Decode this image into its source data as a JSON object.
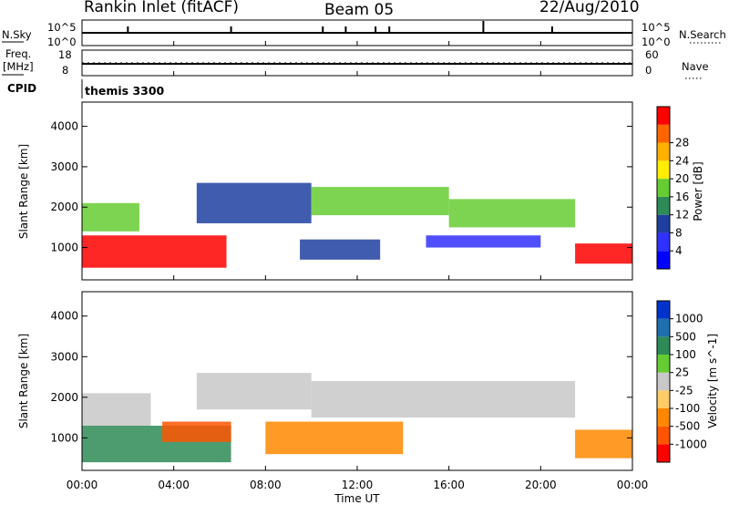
{
  "header": {
    "site": "Rankin Inlet (fitACF)",
    "beam": "Beam 05",
    "date": "22/Aug/2010"
  },
  "sky_panel": {
    "left_label": "N.Sky",
    "right_label": "N.Search",
    "left_ticks": [
      "10^5",
      "10^0"
    ],
    "right_ticks": [
      "10^5",
      "10^0"
    ]
  },
  "freq_panel": {
    "left_label_1": "Freq.",
    "left_label_2": "[MHz]",
    "right_label": "Nave",
    "left_ticks": [
      "18",
      "8"
    ],
    "right_ticks": [
      "60",
      "0"
    ]
  },
  "cpid": {
    "label": "CPID",
    "value": "themis 3300"
  },
  "chart_data": [
    {
      "type": "heatmap",
      "title": "",
      "ylabel": "Slant Range [km]",
      "y_ticks": [
        "1000",
        "2000",
        "3000",
        "4000"
      ],
      "ylim": [
        200,
        4600
      ],
      "colorbar_label": "Power [dB]",
      "colorbar_ticks": [
        "4",
        "8",
        "12",
        "16",
        "20",
        "24",
        "28"
      ],
      "colors": [
        "#0000ff",
        "#3030ff",
        "#1f3fa0",
        "#2e8b57",
        "#66cc33",
        "#ffee00",
        "#ffb000",
        "#ff6600",
        "#ff0000"
      ],
      "bands": [
        {
          "start": 0,
          "end": 6.3,
          "low": 500,
          "high": 1300,
          "level": 8
        },
        {
          "start": 0,
          "end": 2.5,
          "low": 1400,
          "high": 2100,
          "level": 4
        },
        {
          "start": 5,
          "end": 10,
          "low": 1600,
          "high": 2600,
          "level": 2
        },
        {
          "start": 10,
          "end": 16,
          "low": 1800,
          "high": 2500,
          "level": 4
        },
        {
          "start": 16,
          "end": 21.5,
          "low": 1500,
          "high": 2200,
          "level": 4
        },
        {
          "start": 21.5,
          "end": 24,
          "low": 600,
          "high": 1100,
          "level": 8
        },
        {
          "start": 9.5,
          "end": 13,
          "low": 700,
          "high": 1200,
          "level": 2
        },
        {
          "start": 15,
          "end": 20,
          "low": 1000,
          "high": 1300,
          "level": 1
        }
      ]
    },
    {
      "type": "heatmap",
      "title": "",
      "ylabel": "Slant Range [km]",
      "y_ticks": [
        "1000",
        "2000",
        "3000",
        "4000"
      ],
      "ylim": [
        200,
        4600
      ],
      "colorbar_label": "Velocity [m s^-1]",
      "colorbar_ticks": [
        "1000",
        "500",
        "100",
        "25",
        "-25",
        "-100",
        "-500",
        "-1000"
      ],
      "colors": [
        "#0033cc",
        "#1f6fb0",
        "#2e8b57",
        "#66cc33",
        "#c8c8c8",
        "#ffcc66",
        "#ff8800",
        "#ff5500",
        "#ff0000"
      ],
      "bands": [
        {
          "start": 0,
          "end": 6.5,
          "low": 400,
          "high": 1300,
          "level": 2
        },
        {
          "start": 0,
          "end": 3,
          "low": 1300,
          "high": 2100,
          "level": 4
        },
        {
          "start": 5,
          "end": 10,
          "low": 1700,
          "high": 2600,
          "level": 4
        },
        {
          "start": 10,
          "end": 21.5,
          "low": 1500,
          "high": 2400,
          "level": 4
        },
        {
          "start": 8,
          "end": 14,
          "low": 600,
          "high": 1400,
          "level": 6
        },
        {
          "start": 21.5,
          "end": 24,
          "low": 500,
          "high": 1200,
          "level": 6
        },
        {
          "start": 3.5,
          "end": 6.5,
          "low": 900,
          "high": 1400,
          "level": 7
        }
      ]
    }
  ],
  "time_axis": {
    "label": "Time UT",
    "ticks": [
      "00:00",
      "04:00",
      "08:00",
      "12:00",
      "16:00",
      "20:00",
      "00:00"
    ]
  }
}
